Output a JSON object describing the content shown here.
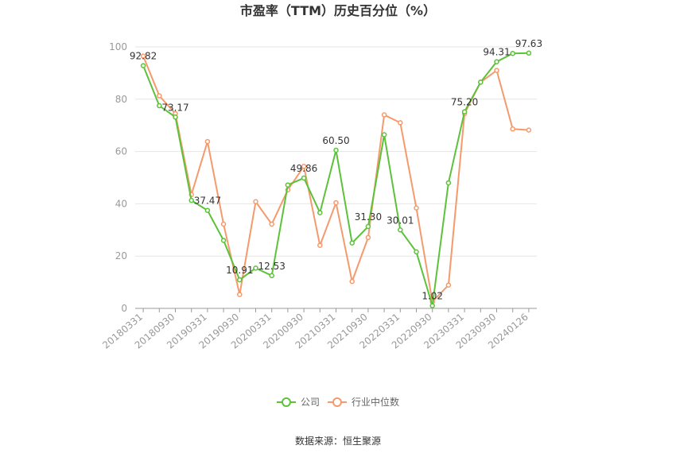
{
  "chart_data": {
    "type": "line",
    "title": "市盈率（TTM）历史百分位（%）",
    "source": "数据来源：恒生聚源",
    "x_tick_labels": [
      "20180331",
      "20180930",
      "20190331",
      "20190930",
      "20200331",
      "20200930",
      "20210331",
      "20210930",
      "20220331",
      "20220930",
      "20230331",
      "20230930",
      "20240126"
    ],
    "ylim": [
      0,
      100
    ],
    "y_ticks": [
      0,
      20,
      40,
      60,
      80,
      100
    ],
    "grid": true,
    "legend_position": "bottom",
    "colors": {
      "company": "#5cc23a",
      "industry": "#f59a6c",
      "grid": "#e6e6e6",
      "axis": "#999999"
    },
    "series": [
      {
        "name": "公司",
        "values": [
          92.82,
          77.5,
          73.17,
          41.3,
          37.47,
          26.0,
          10.91,
          15.4,
          12.53,
          47.2,
          49.86,
          36.6,
          60.5,
          25.0,
          31.3,
          66.4,
          30.01,
          21.6,
          1.02,
          48.0,
          75.2,
          86.5,
          94.31,
          97.5,
          97.63
        ],
        "labels": [
          "92.82",
          "",
          "73.17",
          "",
          "37.47",
          "",
          "10.91",
          "",
          "12.53",
          "",
          "49.86",
          "",
          "60.50",
          "",
          "31.30",
          "",
          "30.01",
          "",
          "1.02",
          "",
          "75.20",
          "",
          "94.31",
          "",
          "97.63"
        ]
      },
      {
        "name": "行业中位数",
        "values": [
          96.5,
          81.3,
          74.5,
          43.5,
          63.8,
          32.2,
          5.3,
          40.8,
          32.2,
          45.3,
          54.3,
          24.1,
          40.4,
          10.3,
          27.1,
          74.0,
          71.0,
          38.4,
          2.5,
          8.9,
          74.5,
          86.5,
          91.0,
          68.6,
          68.2
        ]
      }
    ]
  }
}
